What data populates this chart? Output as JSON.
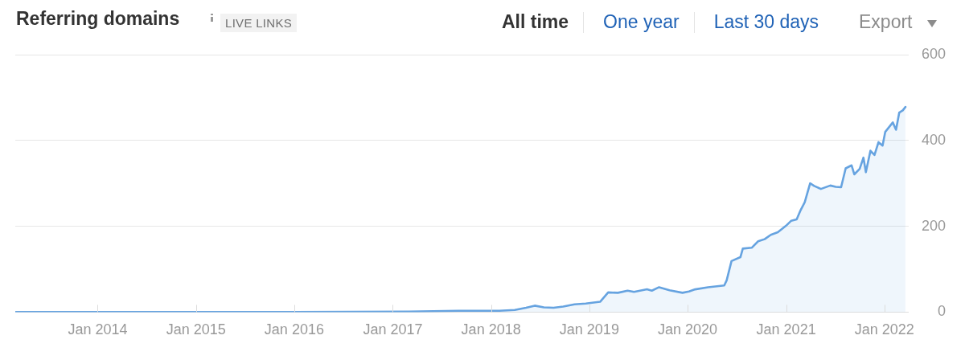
{
  "chart_data": {
    "type": "area",
    "title": "Referring domains",
    "annotations": [
      "LIVE LINKS",
      "All time",
      "One year",
      "Last 30 days",
      "Export"
    ],
    "x": [
      "2013-03-01",
      "2016-01-01",
      "2017-03-01",
      "2017-09-01",
      "2018-02-01",
      "2018-03-30",
      "2018-05-11",
      "2018-06-12",
      "2018-07-16",
      "2018-08-21",
      "2018-09-26",
      "2018-11-07",
      "2018-12-19",
      "2019-02-10",
      "2019-03-12",
      "2019-04-17",
      "2019-05-23",
      "2019-06-16",
      "2019-08-03",
      "2019-08-21",
      "2019-09-17",
      "2019-10-26",
      "2019-12-13",
      "2020-01-06",
      "2020-01-29",
      "2020-03-17",
      "2020-05-16",
      "2020-05-25",
      "2020-06-12",
      "2020-07-15",
      "2020-07-24",
      "2020-08-26",
      "2020-09-19",
      "2020-10-13",
      "2020-11-05",
      "2020-12-01",
      "2020-12-31",
      "2021-01-20",
      "2021-02-09",
      "2021-02-24",
      "2021-03-11",
      "2021-03-31",
      "2021-04-15",
      "2021-05-10",
      "2021-06-14",
      "2021-07-04",
      "2021-07-24",
      "2021-08-10",
      "2021-09-01",
      "2021-09-11",
      "2021-10-01",
      "2021-10-15",
      "2021-10-24",
      "2021-11-10",
      "2021-11-25",
      "2021-12-10",
      "2021-12-25",
      "2022-01-04",
      "2022-02-01",
      "2022-02-13",
      "2022-02-25",
      "2022-03-10",
      "2022-03-20"
    ],
    "values": [
      0,
      0,
      1,
      3,
      3,
      5,
      10,
      15,
      11,
      10,
      13,
      18,
      20,
      24,
      46,
      45,
      50,
      47,
      53,
      50,
      58,
      51,
      45,
      48,
      53,
      58,
      62,
      74,
      119,
      128,
      148,
      150,
      165,
      170,
      180,
      186,
      201,
      213,
      216,
      238,
      256,
      300,
      294,
      287,
      295,
      292,
      291,
      335,
      342,
      321,
      334,
      360,
      326,
      376,
      366,
      396,
      388,
      420,
      442,
      425,
      465,
      470,
      478
    ],
    "color": "#66a3e0",
    "xlim": [
      "2013-03-01",
      "2022-04-01"
    ],
    "xticks": [
      {
        "value": "2014-01",
        "label": "Jan 2014"
      },
      {
        "value": "2015-01",
        "label": "Jan 2015"
      },
      {
        "value": "2016-01",
        "label": "Jan 2016"
      },
      {
        "value": "2017-01",
        "label": "Jan 2017"
      },
      {
        "value": "2018-01",
        "label": "Jan 2018"
      },
      {
        "value": "2019-01",
        "label": "Jan 2019"
      },
      {
        "value": "2020-01",
        "label": "Jan 2020"
      },
      {
        "value": "2021-01",
        "label": "Jan 2021"
      },
      {
        "value": "2022-01",
        "label": "Jan 2022"
      }
    ],
    "ylim": [
      0,
      600
    ],
    "yticks": [
      0,
      200,
      400,
      600
    ],
    "grid": "y",
    "legend": false,
    "marker": "none"
  }
}
